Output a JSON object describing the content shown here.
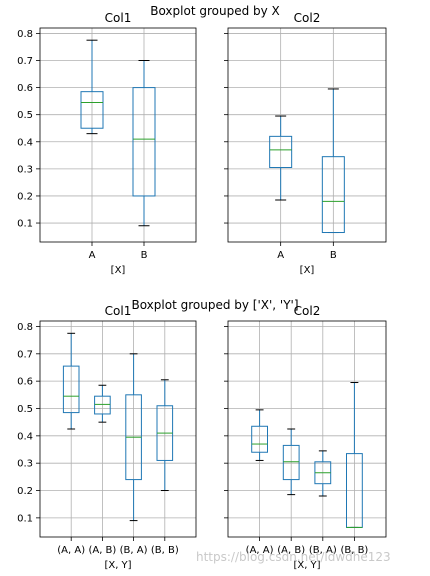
{
  "figure_titles": [
    "Boxplot grouped by X",
    "Boxplot grouped by ['X', 'Y']"
  ],
  "watermark": "https://blog.csdn.net/ldwdhe123",
  "colors": {
    "box": "#1f77b4",
    "median": "#2ca02c",
    "grid": "#b0b0b0",
    "axis": "#000000"
  },
  "chart_data": [
    {
      "type": "box",
      "subplot_title": "Col1",
      "xlabel": "[X]",
      "categories": [
        "A",
        "B"
      ],
      "ylim": [
        0.03,
        0.82
      ],
      "yticks": [
        0.1,
        0.2,
        0.3,
        0.4,
        0.5,
        0.6,
        0.7,
        0.8
      ],
      "grid": true,
      "boxes": [
        {
          "whislo": 0.43,
          "q1": 0.45,
          "med": 0.545,
          "q3": 0.585,
          "whishi": 0.775
        },
        {
          "whislo": 0.09,
          "q1": 0.2,
          "med": 0.41,
          "q3": 0.6,
          "whishi": 0.7
        }
      ]
    },
    {
      "type": "box",
      "subplot_title": "Col2",
      "xlabel": "[X]",
      "categories": [
        "A",
        "B"
      ],
      "ylim": [
        0.03,
        0.82
      ],
      "yticks": [
        0.1,
        0.2,
        0.3,
        0.4,
        0.5,
        0.6,
        0.7,
        0.8
      ],
      "show_ytick_labels": false,
      "grid": true,
      "boxes": [
        {
          "whislo": 0.185,
          "q1": 0.305,
          "med": 0.37,
          "q3": 0.42,
          "whishi": 0.495
        },
        {
          "whislo": 0.065,
          "q1": 0.065,
          "med": 0.18,
          "q3": 0.345,
          "whishi": 0.595
        }
      ]
    },
    {
      "type": "box",
      "subplot_title": "Col1",
      "xlabel": "[X, Y]",
      "categories": [
        "(A, A)",
        "(A, B)",
        "(B, A)",
        "(B, B)"
      ],
      "ylim": [
        0.03,
        0.82
      ],
      "yticks": [
        0.1,
        0.2,
        0.3,
        0.4,
        0.5,
        0.6,
        0.7,
        0.8
      ],
      "grid": true,
      "boxes": [
        {
          "whislo": 0.425,
          "q1": 0.485,
          "med": 0.545,
          "q3": 0.655,
          "whishi": 0.775
        },
        {
          "whislo": 0.45,
          "q1": 0.48,
          "med": 0.515,
          "q3": 0.545,
          "whishi": 0.585
        },
        {
          "whislo": 0.09,
          "q1": 0.24,
          "med": 0.395,
          "q3": 0.55,
          "whishi": 0.7
        },
        {
          "whislo": 0.2,
          "q1": 0.31,
          "med": 0.41,
          "q3": 0.51,
          "whishi": 0.605
        }
      ]
    },
    {
      "type": "box",
      "subplot_title": "Col2",
      "xlabel": "[X, Y]",
      "categories": [
        "(A, A)",
        "(A, B)",
        "(B, A)",
        "(B, B)"
      ],
      "ylim": [
        0.03,
        0.82
      ],
      "yticks": [
        0.1,
        0.2,
        0.3,
        0.4,
        0.5,
        0.6,
        0.7,
        0.8
      ],
      "show_ytick_labels": false,
      "grid": true,
      "boxes": [
        {
          "whislo": 0.31,
          "q1": 0.34,
          "med": 0.37,
          "q3": 0.435,
          "whishi": 0.495
        },
        {
          "whislo": 0.185,
          "q1": 0.24,
          "med": 0.305,
          "q3": 0.365,
          "whishi": 0.425
        },
        {
          "whislo": 0.18,
          "q1": 0.225,
          "med": 0.265,
          "q3": 0.305,
          "whishi": 0.345
        },
        {
          "whislo": 0.065,
          "q1": 0.065,
          "med": 0.065,
          "q3": 0.335,
          "whishi": 0.595
        }
      ]
    }
  ]
}
